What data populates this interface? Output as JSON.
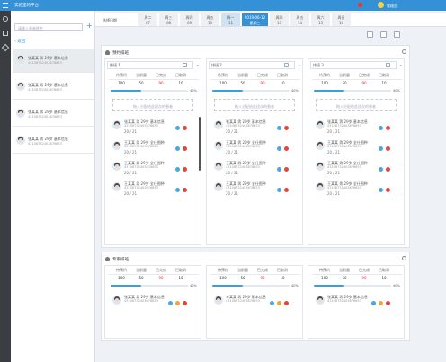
{
  "header": {
    "title": "实验室的平台",
    "user": "管理员"
  },
  "patients": {
    "search_placeholder": "请输入患者姓名",
    "back": "返回",
    "items": [
      {
        "name": "张某某 男 29岁 基本信息",
        "id": "43108732403876653"
      },
      {
        "name": "张某某 男 29岁 基本信息",
        "id": "43108732403876653"
      },
      {
        "name": "张某某 男 29岁 基本信息",
        "id": "43108732403876653"
      },
      {
        "name": "张某某 男 29岁 基本信息",
        "id": "43108732403876653"
      }
    ]
  },
  "dates": {
    "label": "选择日期",
    "items": [
      {
        "day": "周二",
        "date": "07"
      },
      {
        "day": "周三",
        "date": "08"
      },
      {
        "day": "周四",
        "date": "09"
      },
      {
        "day": "周五",
        "date": "10"
      },
      {
        "day": "周一",
        "date": "11"
      },
      {
        "day": "2019-06-12",
        "date": "星期三"
      },
      {
        "day": "周四",
        "date": "13"
      },
      {
        "day": "周五",
        "date": "14"
      },
      {
        "day": "周六",
        "date": "15"
      },
      {
        "day": "周日",
        "date": "16"
      }
    ]
  },
  "sections": [
    {
      "title": "预约排班",
      "drop_hint": "拖入分配给此班次的患者",
      "columns": [
        {
          "name": "排班 1",
          "stat_labels": [
            "待预约",
            "当前量",
            "已完成",
            "已取消"
          ],
          "stat_values": [
            "100",
            "50",
            "90",
            "10"
          ],
          "progress": {
            "value": 40,
            "label": "40%"
          },
          "patients": [
            {
              "name": "张某某 男 29岁 基本信息",
              "id": "43108732403876653",
              "count": "20 / 21"
            },
            {
              "name": "王某某 男 29岁 全仕图种",
              "id": "43108732403876653",
              "count": "20 / 21"
            },
            {
              "name": "王某某 男 29岁 全仕图种",
              "id": "43108732403876653",
              "count": "20 / 21"
            },
            {
              "name": "王某某 男 29岁 全仕图种",
              "id": "43108732403876653",
              "count": "20 / 21"
            }
          ]
        },
        {
          "name": "排班 2",
          "stat_labels": [
            "待预约",
            "当前量",
            "已完成",
            "已取消"
          ],
          "stat_values": [
            "100",
            "50",
            "90",
            "10"
          ],
          "progress": {
            "value": 40,
            "label": "40%"
          },
          "patients": [
            {
              "name": "张某某 男 29岁 基本信息",
              "id": "43108732403876653",
              "count": "20 / 21"
            },
            {
              "name": "王某某 男 29岁 全仕图种",
              "id": "43108732403876653",
              "count": "20 / 21"
            },
            {
              "name": "王某某 男 29岁 全仕图种",
              "id": "43108732403876653",
              "count": "20 / 21"
            },
            {
              "name": "王某某 男 29岁 全仕图种",
              "id": "43108732403876653",
              "count": "20 / 21"
            }
          ]
        },
        {
          "name": "排班 3",
          "stat_labels": [
            "待预约",
            "当前量",
            "已完成",
            "已取消"
          ],
          "stat_values": [
            "100",
            "50",
            "90",
            "10"
          ],
          "progress": {
            "value": 40,
            "label": "40%"
          },
          "patients": [
            {
              "name": "张某某 男 29岁 基本信息",
              "id": "43108732403876653",
              "count": "20 / 21"
            },
            {
              "name": "王某某 男 29岁 全仕图种",
              "id": "43108732403876653",
              "count": "20 / 21"
            },
            {
              "name": "王某某 男 29岁 全仕图种",
              "id": "43108732403876653",
              "count": "20 / 21"
            },
            {
              "name": "王某某 男 29岁 全仕图种",
              "id": "43108732403876653",
              "count": "20 / 21"
            }
          ]
        }
      ]
    },
    {
      "title": "专家排班",
      "columns": [
        {
          "stat_labels": [
            "待预约",
            "当前量",
            "已完成",
            "已取消"
          ],
          "stat_values": [
            "100",
            "50",
            "90",
            "10"
          ],
          "progress": {
            "value": 40,
            "label": "40%"
          },
          "patients": [
            {
              "name": "张某某 男 29岁 基本信息",
              "id": "43108732403876653"
            }
          ]
        },
        {
          "stat_labels": [
            "待预约",
            "当前量",
            "已完成",
            "已取消"
          ],
          "stat_values": [
            "100",
            "50",
            "90",
            "10"
          ],
          "progress": {
            "value": 40,
            "label": "40%"
          },
          "patients": [
            {
              "name": "李某某 男 29岁 基本信息",
              "id": "43108732403876653"
            }
          ]
        },
        {
          "stat_labels": [
            "待预约",
            "当前量",
            "已完成",
            "已取消"
          ],
          "stat_values": [
            "100",
            "50",
            "90",
            "10"
          ],
          "progress": {
            "value": 40,
            "label": "40%"
          },
          "patients": [
            {
              "name": "张某某 男 29岁 基本信息",
              "id": "43108732403876653"
            }
          ]
        }
      ]
    }
  ]
}
